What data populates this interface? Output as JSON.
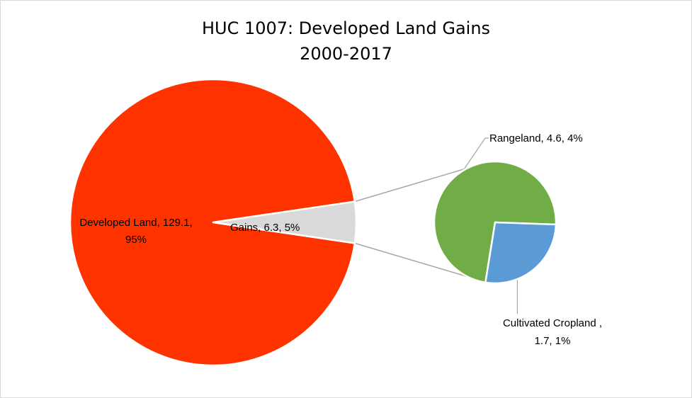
{
  "chart_data": {
    "type": "pie",
    "title": "HUC 1007: Developed Land Gains",
    "subtitle": "2000-2017",
    "colors": {
      "developed": "#ff3300",
      "gains": "#d9d9d9",
      "rangeland": "#70ad47",
      "cropland": "#5b9bd5",
      "leader": "#a6a6a6"
    },
    "main_pie": [
      {
        "name": "Developed Land",
        "value": 129.1,
        "percent": "95%",
        "label_line1": "Developed Land, 129.1,",
        "label_line2": "95%"
      },
      {
        "name": "Gains",
        "value": 6.3,
        "percent": "5%",
        "label": "Gains, 6.3, 5%"
      }
    ],
    "secondary_pie": [
      {
        "name": "Rangeland",
        "value": 4.6,
        "percent": "4%",
        "label": "Rangeland, 4.6, 4%"
      },
      {
        "name": "Cultivated Cropland",
        "value": 1.7,
        "percent": "1%",
        "label_line1": "Cultivated Cropland ,",
        "label_line2": "1.7, 1%"
      }
    ]
  }
}
